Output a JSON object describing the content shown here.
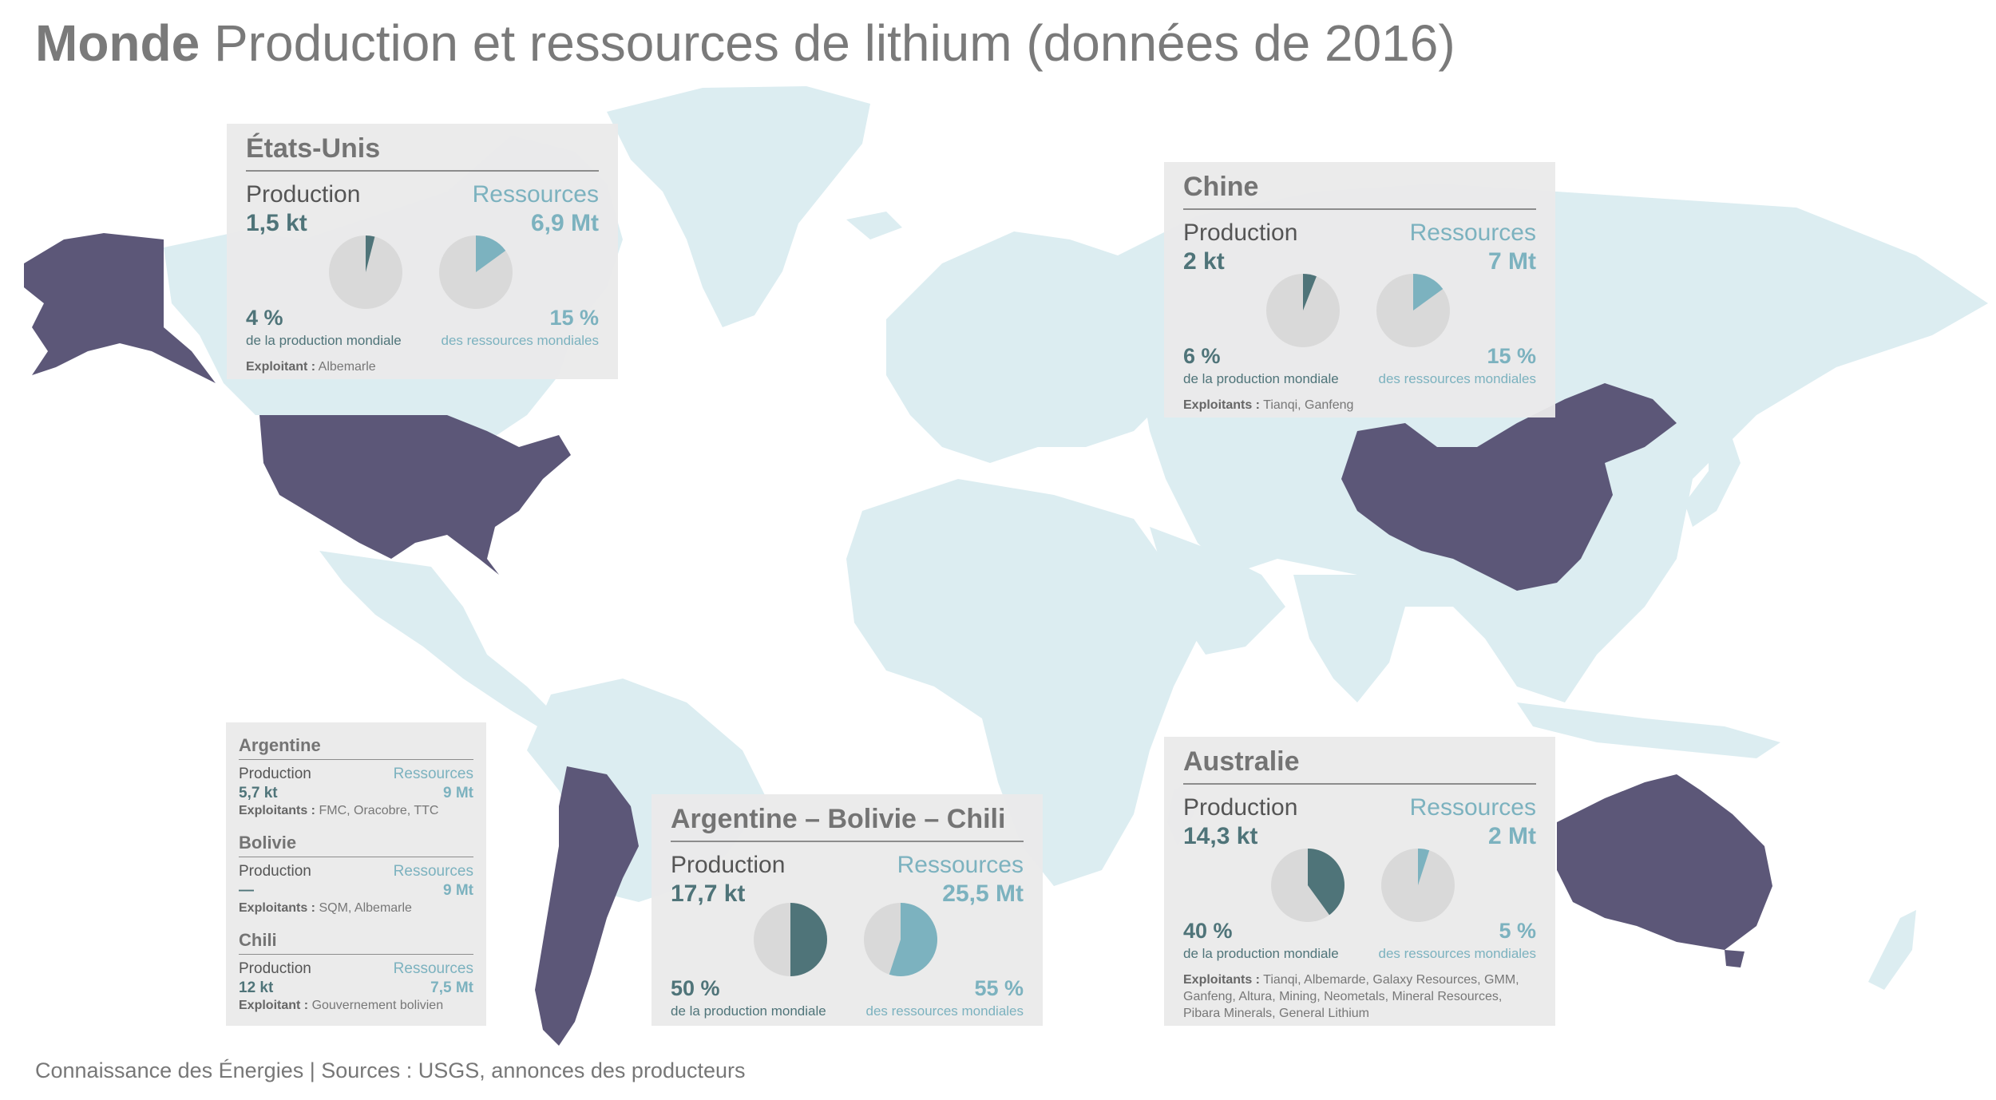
{
  "title": {
    "bold": "Monde",
    "rest": "Production et ressources de lithium (données de 2016)"
  },
  "source": "Connaissance des Énergies | Sources : USGS, annonces des producteurs",
  "colors": {
    "land": "#dcedf1",
    "highlight": "#5c5778",
    "production": "#4f7479",
    "resources": "#7cb2bf",
    "pie_rest": "#d9d9d9",
    "card_bg": "#eaeaea"
  },
  "labels": {
    "production": "Production",
    "resources": "Ressources",
    "prod_share": "de la production mondiale",
    "res_share": "des ressources mondiales"
  },
  "highlighted_countries": [
    "États-Unis",
    "Chine",
    "Argentine",
    "Bolivie",
    "Chili",
    "Australie"
  ],
  "cards": {
    "usa": {
      "name": "États-Unis",
      "production": "1,5 kt",
      "resources": "6,9 Mt",
      "prod_pct_label": "4 %",
      "res_pct_label": "15 %",
      "prod_pct": 4,
      "res_pct": 15,
      "exploitants_label": "Exploitant :",
      "exploitants": "Albemarle"
    },
    "china": {
      "name": "Chine",
      "production": "2 kt",
      "resources": "7 Mt",
      "prod_pct_label": "6 %",
      "res_pct_label": "15 %",
      "prod_pct": 6,
      "res_pct": 15,
      "exploitants_label": "Exploitants :",
      "exploitants": "Tianqi, Ganfeng"
    },
    "abc": {
      "name": "Argentine – Bolivie – Chili",
      "production": "17,7 kt",
      "resources": "25,5 Mt",
      "prod_pct_label": "50 %",
      "res_pct_label": "55 %",
      "prod_pct": 50,
      "res_pct": 55
    },
    "australia": {
      "name": "Australie",
      "production": "14,3 kt",
      "resources": "2 Mt",
      "prod_pct_label": "40 %",
      "res_pct_label": "5 %",
      "prod_pct": 40,
      "res_pct": 5,
      "exploitants_label": "Exploitants :",
      "exploitants": "Tianqi, Albemarde, Galaxy Resources, GMM, Ganfeng, Altura, Mining, Neometals, Mineral Resources, Pibara Minerals, General Lithium"
    }
  },
  "small_card": [
    {
      "name": "Argentine",
      "production": "5,7 kt",
      "resources": "9 Mt",
      "exploitants_label": "Exploitants :",
      "exploitants": "FMC, Oracobre, TTC"
    },
    {
      "name": "Bolivie",
      "production": "—",
      "resources": "9 Mt",
      "exploitants_label": "Exploitants :",
      "exploitants": "SQM, Albemarle"
    },
    {
      "name": "Chili",
      "production": "12 kt",
      "resources": "7,5 Mt",
      "exploitants_label": "Exploitant :",
      "exploitants": "Gouvernement bolivien"
    }
  ]
}
